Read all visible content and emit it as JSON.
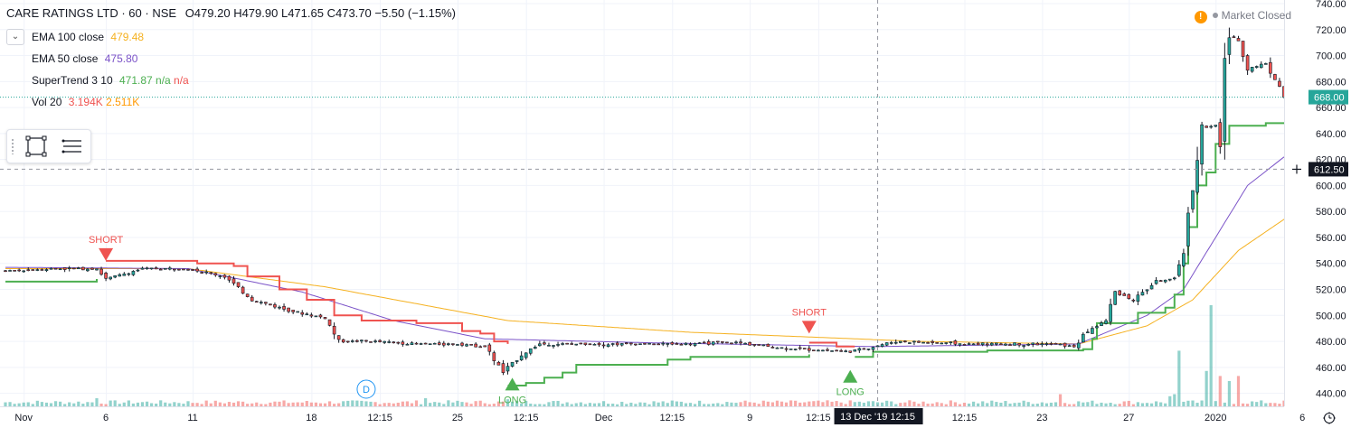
{
  "header": {
    "symbol": "CARE RATINGS LTD · 60 · NSE",
    "open": "O479.20",
    "high": "H479.90",
    "low": "L471.65",
    "close": "C473.70",
    "change": "−5.50 (−1.15%)"
  },
  "indicators": {
    "ema100": {
      "label": "EMA 100 close",
      "value": "479.48",
      "color": "#f5b120"
    },
    "ema50": {
      "label": "EMA 50 close",
      "value": "475.80",
      "color": "#7b53c8"
    },
    "supertrend": {
      "label": "SuperTrend 3 10",
      "value": "471.87",
      "na1": "n/a",
      "na2": "n/a",
      "color": "#4caf50",
      "na_color": "#ef5350"
    },
    "volume": {
      "label": "Vol 20",
      "value1": "3.194K",
      "value2": "2.511K",
      "color1": "#ef5350",
      "color2": "#ff9800"
    }
  },
  "market_status": {
    "label": "Market Closed",
    "warn_symbol": "!"
  },
  "icons": {
    "collapse": "chevron-down-icon",
    "rect_tool": "rectangle-icon",
    "menu_tool": "hamburger-menu-icon",
    "clock": "clock-icon",
    "crosshair": "plus-icon"
  },
  "chart_data": {
    "type": "candlestick",
    "price_axis": {
      "min": 430,
      "max": 740,
      "ticks": [
        740,
        720,
        700,
        680,
        660,
        640,
        620,
        600,
        580,
        560,
        540,
        520,
        500,
        480,
        460,
        440
      ],
      "tick_labels": [
        "740.00",
        "720.00",
        "700.00",
        "680.00",
        "660.00",
        "640.00",
        "620.00",
        "600.00",
        "580.00",
        "560.00",
        "540.00",
        "520.00",
        "500.00",
        "480.00",
        "460.00",
        "440.00"
      ],
      "last_price": 668.0,
      "last_price_label": "668.00",
      "last_price_color": "#26a69a",
      "crosshair_price": 612.5,
      "crosshair_price_label": "612.50"
    },
    "time_axis": {
      "bars_total": 280,
      "labels": [
        {
          "bar": 4,
          "text": "Nov"
        },
        {
          "bar": 22,
          "text": "6"
        },
        {
          "bar": 41,
          "text": "11"
        },
        {
          "bar": 67,
          "text": "18"
        },
        {
          "bar": 82,
          "text": "12:15"
        },
        {
          "bar": 99,
          "text": "25"
        },
        {
          "bar": 114,
          "text": "12:15"
        },
        {
          "bar": 131,
          "text": "Dec"
        },
        {
          "bar": 146,
          "text": "12:15"
        },
        {
          "bar": 163,
          "text": "9"
        },
        {
          "bar": 178,
          "text": "12:15"
        },
        {
          "bar": 210,
          "text": "12:15"
        },
        {
          "bar": 227,
          "text": "23"
        },
        {
          "bar": 246,
          "text": "27"
        },
        {
          "bar": 265,
          "text": "2020"
        },
        {
          "bar": 284,
          "text": "6"
        }
      ],
      "crosshair_bar": 191,
      "crosshair_label": "13 Dec '19  12:15"
    },
    "price_anchors": [
      {
        "bar": 0,
        "price": 534
      },
      {
        "bar": 10,
        "price": 536
      },
      {
        "bar": 20,
        "price": 536
      },
      {
        "bar": 22,
        "price": 528
      },
      {
        "bar": 30,
        "price": 536
      },
      {
        "bar": 40,
        "price": 536
      },
      {
        "bar": 48,
        "price": 530
      },
      {
        "bar": 54,
        "price": 512
      },
      {
        "bar": 62,
        "price": 504
      },
      {
        "bar": 70,
        "price": 498
      },
      {
        "bar": 73,
        "price": 480
      },
      {
        "bar": 80,
        "price": 480
      },
      {
        "bar": 90,
        "price": 478
      },
      {
        "bar": 100,
        "price": 478
      },
      {
        "bar": 105,
        "price": 476
      },
      {
        "bar": 109,
        "price": 456
      },
      {
        "bar": 113,
        "price": 470
      },
      {
        "bar": 117,
        "price": 478
      },
      {
        "bar": 130,
        "price": 478
      },
      {
        "bar": 145,
        "price": 478
      },
      {
        "bar": 160,
        "price": 479
      },
      {
        "bar": 170,
        "price": 475
      },
      {
        "bar": 180,
        "price": 473
      },
      {
        "bar": 185,
        "price": 472
      },
      {
        "bar": 195,
        "price": 480
      },
      {
        "bar": 210,
        "price": 478
      },
      {
        "bar": 230,
        "price": 478
      },
      {
        "bar": 234,
        "price": 476
      },
      {
        "bar": 237,
        "price": 488
      },
      {
        "bar": 241,
        "price": 496
      },
      {
        "bar": 243,
        "price": 518
      },
      {
        "bar": 247,
        "price": 512
      },
      {
        "bar": 252,
        "price": 526
      },
      {
        "bar": 256,
        "price": 528
      },
      {
        "bar": 258,
        "price": 550
      },
      {
        "bar": 260,
        "price": 600
      },
      {
        "bar": 262,
        "price": 644
      },
      {
        "bar": 265,
        "price": 646
      },
      {
        "bar": 266,
        "price": 628
      },
      {
        "bar": 267,
        "price": 705
      },
      {
        "bar": 268,
        "price": 715
      },
      {
        "bar": 270,
        "price": 712
      },
      {
        "bar": 272,
        "price": 690
      },
      {
        "bar": 274,
        "price": 692
      },
      {
        "bar": 276,
        "price": 694
      },
      {
        "bar": 278,
        "price": 682
      },
      {
        "bar": 280,
        "price": 668
      }
    ],
    "ema100_anchors": [
      {
        "bar": 0,
        "price": 536
      },
      {
        "bar": 40,
        "price": 536
      },
      {
        "bar": 70,
        "price": 522
      },
      {
        "bar": 110,
        "price": 496
      },
      {
        "bar": 150,
        "price": 487
      },
      {
        "bar": 200,
        "price": 480
      },
      {
        "bar": 235,
        "price": 478
      },
      {
        "bar": 250,
        "price": 492
      },
      {
        "bar": 260,
        "price": 512
      },
      {
        "bar": 270,
        "price": 550
      },
      {
        "bar": 280,
        "price": 574
      }
    ],
    "ema50_anchors": [
      {
        "bar": 0,
        "price": 537
      },
      {
        "bar": 40,
        "price": 536
      },
      {
        "bar": 65,
        "price": 518
      },
      {
        "bar": 85,
        "price": 496
      },
      {
        "bar": 105,
        "price": 482
      },
      {
        "bar": 140,
        "price": 479
      },
      {
        "bar": 190,
        "price": 476
      },
      {
        "bar": 235,
        "price": 478
      },
      {
        "bar": 250,
        "price": 500
      },
      {
        "bar": 258,
        "price": 520
      },
      {
        "bar": 265,
        "price": 560
      },
      {
        "bar": 272,
        "price": 600
      },
      {
        "bar": 280,
        "price": 622
      }
    ],
    "supertrend_down": [
      {
        "bar": 22,
        "price": 542
      },
      {
        "bar": 40,
        "price": 542
      },
      {
        "bar": 42,
        "price": 540
      },
      {
        "bar": 50,
        "price": 538
      },
      {
        "bar": 53,
        "price": 530
      },
      {
        "bar": 60,
        "price": 520
      },
      {
        "bar": 66,
        "price": 512
      },
      {
        "bar": 72,
        "price": 500
      },
      {
        "bar": 78,
        "price": 496
      },
      {
        "bar": 90,
        "price": 494
      },
      {
        "bar": 100,
        "price": 488
      },
      {
        "bar": 104,
        "price": 486
      },
      {
        "bar": 107,
        "price": 480
      },
      {
        "bar": 110,
        "price": 478
      }
    ],
    "supertrend_down2": [
      {
        "bar": 176,
        "price": 479
      },
      {
        "bar": 182,
        "price": 476
      },
      {
        "bar": 186,
        "price": 476
      }
    ],
    "supertrend_up": [
      {
        "bar": 0,
        "price": 526
      },
      {
        "bar": 12,
        "price": 526
      },
      {
        "bar": 20,
        "price": 528
      }
    ],
    "supertrend_up2": [
      {
        "bar": 110,
        "price": 446
      },
      {
        "bar": 114,
        "price": 448
      },
      {
        "bar": 118,
        "price": 452
      },
      {
        "bar": 122,
        "price": 456
      },
      {
        "bar": 125,
        "price": 462
      },
      {
        "bar": 145,
        "price": 466
      },
      {
        "bar": 150,
        "price": 468
      },
      {
        "bar": 176,
        "price": 470
      }
    ],
    "supertrend_up3": [
      {
        "bar": 186,
        "price": 468
      },
      {
        "bar": 190,
        "price": 472
      },
      {
        "bar": 215,
        "price": 473
      },
      {
        "bar": 236,
        "price": 474
      },
      {
        "bar": 238,
        "price": 482
      },
      {
        "bar": 239,
        "price": 494
      },
      {
        "bar": 245,
        "price": 494
      },
      {
        "bar": 248,
        "price": 502
      },
      {
        "bar": 254,
        "price": 506
      },
      {
        "bar": 256,
        "price": 516
      },
      {
        "bar": 258,
        "price": 540
      },
      {
        "bar": 259,
        "price": 568
      },
      {
        "bar": 261,
        "price": 600
      },
      {
        "bar": 263,
        "price": 610
      },
      {
        "bar": 265,
        "price": 632
      },
      {
        "bar": 268,
        "price": 646
      },
      {
        "bar": 275,
        "price": 646
      },
      {
        "bar": 276,
        "price": 648
      },
      {
        "bar": 280,
        "price": 648
      }
    ],
    "signals": [
      {
        "type": "SHORT",
        "bar": 22,
        "price": 542,
        "color": "#ef5350"
      },
      {
        "type": "LONG",
        "bar": 111,
        "price": 452,
        "color": "#4caf50"
      },
      {
        "type": "SHORT",
        "bar": 176,
        "price": 486,
        "color": "#ef5350"
      },
      {
        "type": "LONG",
        "bar": 185,
        "price": 458,
        "color": "#4caf50"
      }
    ],
    "dividend_marker": {
      "bar": 79,
      "label": "D"
    },
    "volume_spikes": [
      {
        "bar": 257,
        "value": 0.55
      },
      {
        "bar": 264,
        "value": 1.0
      },
      {
        "bar": 263,
        "value": 0.35
      },
      {
        "bar": 266,
        "value": 0.3
      },
      {
        "bar": 268,
        "value": 0.25
      },
      {
        "bar": 270,
        "value": 0.3
      },
      {
        "bar": 256,
        "value": 0.12
      },
      {
        "bar": 255,
        "value": 0.1
      },
      {
        "bar": 231,
        "value": 0.12
      },
      {
        "bar": 92,
        "value": 0.08
      },
      {
        "bar": 110,
        "value": 0.07
      },
      {
        "bar": 20,
        "value": 0.08
      }
    ],
    "colors": {
      "up": "#26a69a",
      "down": "#ef5350",
      "candle": "#131722",
      "grid": "#f0f3fa",
      "vol_up": "rgba(38,166,154,0.5)",
      "vol_down": "rgba(239,83,80,0.5)"
    }
  }
}
